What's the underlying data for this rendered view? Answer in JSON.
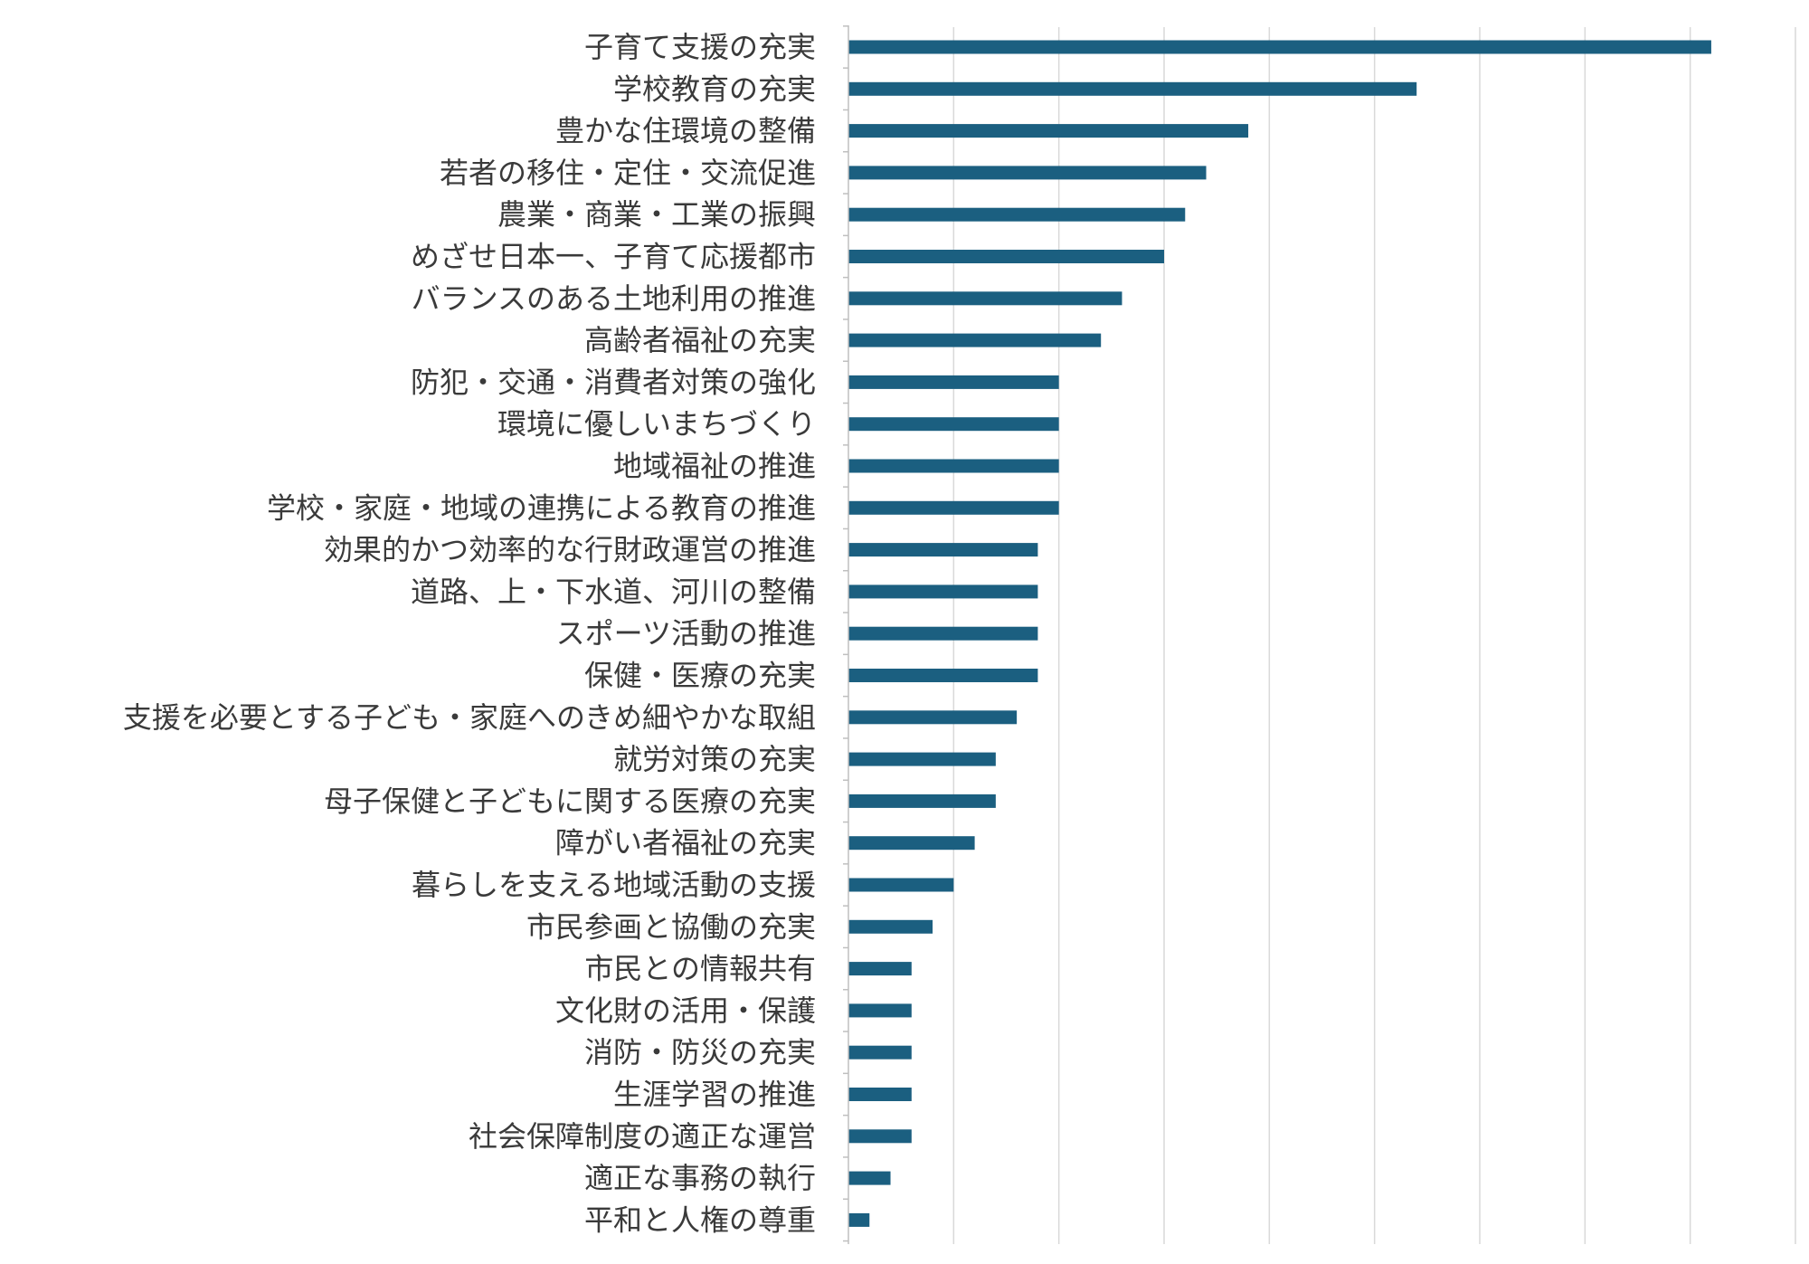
{
  "chart_data": {
    "type": "bar",
    "orientation": "horizontal",
    "title": "",
    "xlabel": "",
    "ylabel": "",
    "xlim": [
      0,
      45
    ],
    "grid": true,
    "legend": "none",
    "bar_color": "#1b5f80",
    "grid_color": "#d9d9d9",
    "axis_color": "#bfbfbf",
    "categories": [
      "子育て支援の充実",
      "学校教育の充実",
      "豊かな住環境の整備",
      "若者の移住・定住・交流促進",
      "農業・商業・工業の振興",
      "めざせ日本一、子育て応援都市",
      "バランスのある土地利用の推進",
      "高齢者福祉の充実",
      "防犯・交通・消費者対策の強化",
      "環境に優しいまちづくり",
      "地域福祉の推進",
      "学校・家庭・地域の連携による教育の推進",
      "効果的かつ効率的な行財政運営の推進",
      "道路、上・下水道、河川の整備",
      "スポーツ活動の推進",
      "保健・医療の充実",
      "支援を必要とする子ども・家庭へのきめ細やかな取組",
      "就労対策の充実",
      "母子保健と子どもに関する医療の充実",
      "障がい者福祉の充実",
      "暮らしを支える地域活動の支援",
      "市民参画と協働の充実",
      "市民との情報共有",
      "文化財の活用・保護",
      "消防・防災の充実",
      "生涯学習の推進",
      "社会保障制度の適正な運営",
      "適正な事務の執行",
      "平和と人権の尊重"
    ],
    "values": [
      41,
      27,
      19,
      17,
      16,
      15,
      13,
      12,
      10,
      10,
      10,
      10,
      9,
      9,
      9,
      9,
      8,
      7,
      7,
      6,
      5,
      4,
      3,
      3,
      3,
      3,
      3,
      2,
      1
    ]
  }
}
